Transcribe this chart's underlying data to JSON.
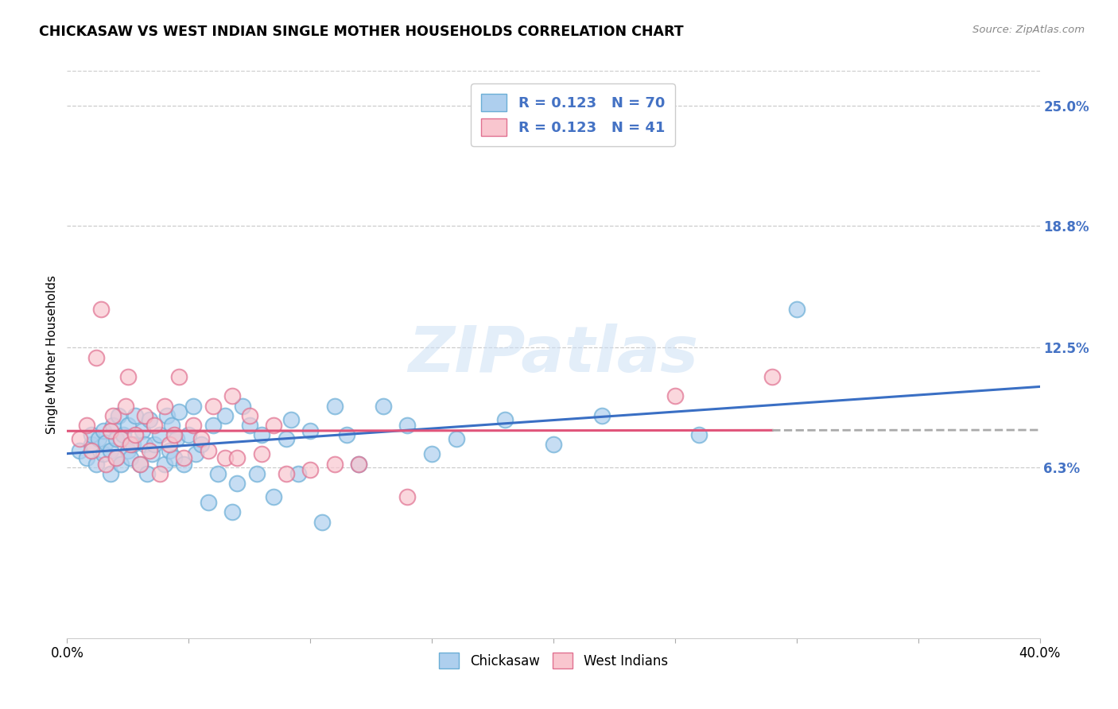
{
  "title": "CHICKASAW VS WEST INDIAN SINGLE MOTHER HOUSEHOLDS CORRELATION CHART",
  "source": "Source: ZipAtlas.com",
  "ylabel": "Single Mother Households",
  "ytick_labels": [
    "6.3%",
    "12.5%",
    "18.8%",
    "25.0%"
  ],
  "ytick_values": [
    0.063,
    0.125,
    0.188,
    0.25
  ],
  "xmin": 0.0,
  "xmax": 0.4,
  "ymin": -0.025,
  "ymax": 0.268,
  "r_chickasaw": 0.123,
  "n_chickasaw": 70,
  "r_west_indian": 0.123,
  "n_west_indian": 41,
  "color_chickasaw_face": "#aecfee",
  "color_chickasaw_edge": "#6baed6",
  "color_west_indian_face": "#f9c6cf",
  "color_west_indian_edge": "#e07090",
  "color_blue_line": "#3a6fc4",
  "color_pink_line": "#e0547a",
  "watermark": "ZIPatlas",
  "legend_color": "#4472c4",
  "chickasaw_x": [
    0.005,
    0.008,
    0.01,
    0.01,
    0.012,
    0.013,
    0.015,
    0.015,
    0.016,
    0.018,
    0.018,
    0.019,
    0.02,
    0.02,
    0.021,
    0.022,
    0.023,
    0.025,
    0.025,
    0.026,
    0.027,
    0.028,
    0.03,
    0.031,
    0.032,
    0.033,
    0.034,
    0.035,
    0.036,
    0.038,
    0.04,
    0.041,
    0.042,
    0.043,
    0.044,
    0.045,
    0.046,
    0.048,
    0.05,
    0.052,
    0.053,
    0.055,
    0.058,
    0.06,
    0.062,
    0.065,
    0.068,
    0.07,
    0.072,
    0.075,
    0.078,
    0.08,
    0.085,
    0.09,
    0.092,
    0.095,
    0.1,
    0.105,
    0.11,
    0.115,
    0.12,
    0.13,
    0.14,
    0.15,
    0.16,
    0.18,
    0.2,
    0.22,
    0.26,
    0.3
  ],
  "chickasaw_y": [
    0.072,
    0.068,
    0.075,
    0.08,
    0.065,
    0.078,
    0.07,
    0.082,
    0.076,
    0.06,
    0.072,
    0.085,
    0.068,
    0.078,
    0.09,
    0.065,
    0.08,
    0.072,
    0.085,
    0.068,
    0.075,
    0.09,
    0.065,
    0.082,
    0.075,
    0.06,
    0.088,
    0.07,
    0.075,
    0.08,
    0.065,
    0.09,
    0.072,
    0.085,
    0.068,
    0.078,
    0.092,
    0.065,
    0.08,
    0.095,
    0.07,
    0.075,
    0.045,
    0.085,
    0.06,
    0.09,
    0.04,
    0.055,
    0.095,
    0.085,
    0.06,
    0.08,
    0.048,
    0.078,
    0.088,
    0.06,
    0.082,
    0.035,
    0.095,
    0.08,
    0.065,
    0.095,
    0.085,
    0.07,
    0.078,
    0.088,
    0.075,
    0.09,
    0.08,
    0.145
  ],
  "west_indian_x": [
    0.005,
    0.008,
    0.01,
    0.012,
    0.014,
    0.016,
    0.018,
    0.019,
    0.02,
    0.022,
    0.024,
    0.025,
    0.026,
    0.028,
    0.03,
    0.032,
    0.034,
    0.036,
    0.038,
    0.04,
    0.042,
    0.044,
    0.046,
    0.048,
    0.052,
    0.055,
    0.058,
    0.06,
    0.065,
    0.068,
    0.07,
    0.075,
    0.08,
    0.085,
    0.09,
    0.1,
    0.11,
    0.12,
    0.14,
    0.25,
    0.29
  ],
  "west_indian_y": [
    0.078,
    0.085,
    0.072,
    0.12,
    0.145,
    0.065,
    0.082,
    0.09,
    0.068,
    0.078,
    0.095,
    0.11,
    0.075,
    0.08,
    0.065,
    0.09,
    0.072,
    0.085,
    0.06,
    0.095,
    0.075,
    0.08,
    0.11,
    0.068,
    0.085,
    0.078,
    0.072,
    0.095,
    0.068,
    0.1,
    0.068,
    0.09,
    0.07,
    0.085,
    0.06,
    0.062,
    0.065,
    0.065,
    0.048,
    0.1,
    0.11
  ]
}
